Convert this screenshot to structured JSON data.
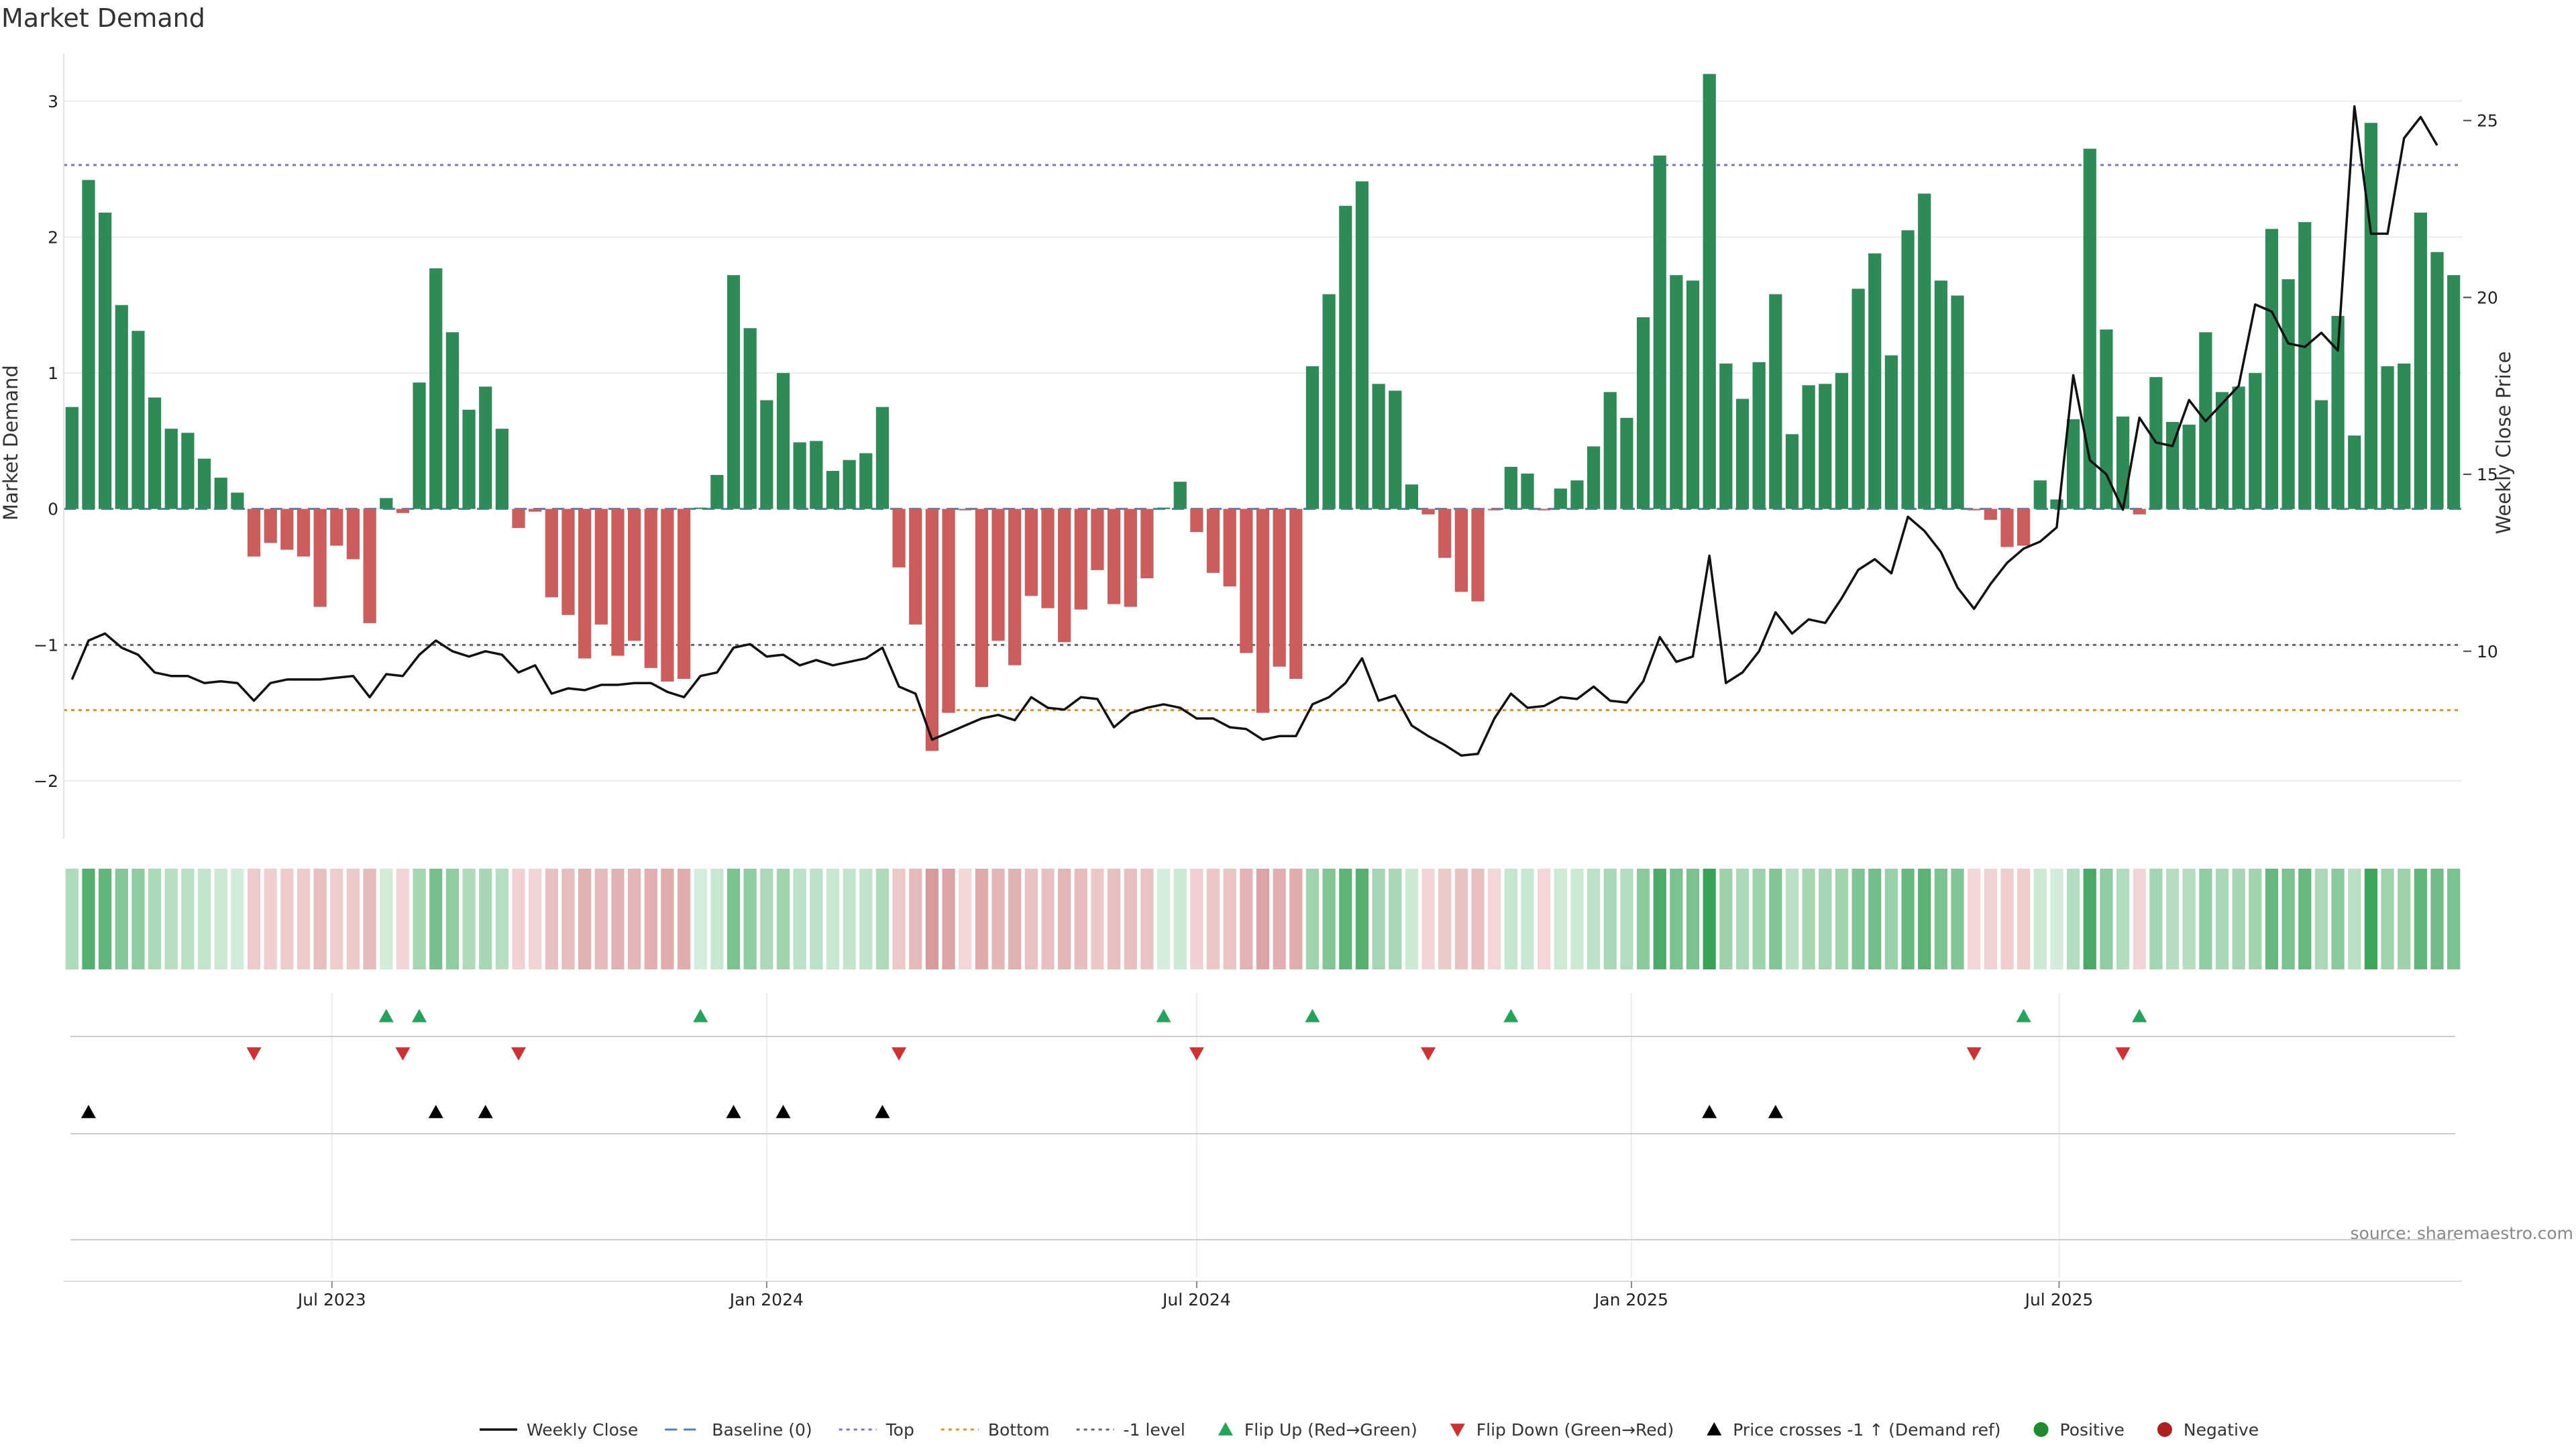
{
  "chart_data": {
    "type": "bar",
    "title": "Market Demand",
    "ylabel_left": "Market Demand",
    "ylabel_right": "Weekly Close Price",
    "source_text": "source: sharemaestro.com",
    "x_start_date": "2023-03-13",
    "y_left_lim": [
      -2.4,
      3.3
    ],
    "y_left_ticks": [
      -2,
      -1,
      0,
      1,
      2,
      3
    ],
    "y_left_tick_labels": [
      "−2",
      "−1",
      "0",
      "1",
      "2",
      "3"
    ],
    "y_right_lim": [
      4.8,
      26.7
    ],
    "y_right_ticks": [
      10,
      15,
      20,
      25
    ],
    "y_right_tick_labels": [
      "10",
      "15",
      "20",
      "25"
    ],
    "x_ticks": [
      {
        "label": "Jul 2023",
        "date": "2023-07-01"
      },
      {
        "label": "Jan 2024",
        "date": "2024-01-01"
      },
      {
        "label": "Jul 2024",
        "date": "2024-07-01"
      },
      {
        "label": "Jan 2025",
        "date": "2025-01-01"
      },
      {
        "label": "Jul 2025",
        "date": "2025-07-01"
      }
    ],
    "reference_lines": [
      {
        "name": "Top",
        "value": 2.53,
        "color": "#7b6fd6",
        "dash": "5,6"
      },
      {
        "name": "-1 level",
        "value": -1.0,
        "color": "#666666",
        "dash": "5,6"
      },
      {
        "name": "Bottom",
        "value": -1.48,
        "color": "#e8901e",
        "dash": "5,6"
      },
      {
        "name": "Baseline (0)",
        "value": 0.0,
        "color": "#4a7fc0",
        "dash": "18,10"
      }
    ],
    "colors": {
      "positive": "#2e8b57",
      "negative": "#cd5c5c",
      "price": "#111111",
      "flip_up": "#22a55b",
      "flip_down": "#d03030",
      "cross": "#000000",
      "positive_dot": "#1e8c2e",
      "negative_dot": "#b02020"
    },
    "demand": [
      0.75,
      2.42,
      2.18,
      1.5,
      1.31,
      0.82,
      0.59,
      0.56,
      0.37,
      0.23,
      0.12,
      -0.35,
      -0.25,
      -0.3,
      -0.35,
      -0.72,
      -0.27,
      -0.37,
      -0.84,
      0.08,
      -0.03,
      0.93,
      1.77,
      1.3,
      0.73,
      0.9,
      0.59,
      -0.14,
      -0.02,
      -0.65,
      -0.78,
      -1.1,
      -0.85,
      -1.08,
      -0.97,
      -1.17,
      -1.27,
      -1.25,
      0.01,
      0.25,
      1.72,
      1.33,
      0.8,
      1.0,
      0.49,
      0.5,
      0.28,
      0.36,
      0.41,
      0.75,
      -0.43,
      -0.85,
      -1.78,
      -1.5,
      -0.01,
      -1.31,
      -0.97,
      -1.15,
      -0.64,
      -0.73,
      -0.98,
      -0.74,
      -0.45,
      -0.7,
      -0.72,
      -0.51,
      0.01,
      0.2,
      -0.17,
      -0.47,
      -0.57,
      -1.06,
      -1.5,
      -1.16,
      -1.25,
      1.05,
      1.58,
      2.23,
      2.41,
      0.92,
      0.87,
      0.18,
      -0.04,
      -0.36,
      -0.61,
      -0.68,
      -0.01,
      0.31,
      0.26,
      -0.01,
      0.15,
      0.21,
      0.46,
      0.86,
      0.67,
      1.41,
      2.6,
      1.72,
      1.68,
      3.2,
      1.07,
      0.81,
      1.08,
      1.58,
      0.55,
      0.91,
      0.92,
      1.0,
      1.62,
      1.88,
      1.13,
      2.05,
      2.32,
      1.68,
      1.57,
      -0.01,
      -0.08,
      -0.28,
      -0.27,
      0.21,
      0.07,
      0.66,
      2.65,
      1.32,
      0.68,
      -0.04,
      0.97,
      0.64,
      0.62,
      1.3,
      0.86,
      0.9,
      1.0,
      2.06,
      1.69,
      2.11,
      0.8,
      1.42,
      0.54,
      2.84,
      1.05,
      1.07,
      2.18,
      1.89,
      1.72
    ],
    "price": [
      9.2,
      10.3,
      10.5,
      10.1,
      9.9,
      9.4,
      9.3,
      9.3,
      9.1,
      9.15,
      9.1,
      8.6,
      9.1,
      9.2,
      9.2,
      9.2,
      9.25,
      9.3,
      8.7,
      9.35,
      9.3,
      9.9,
      10.3,
      10.0,
      9.85,
      10.0,
      9.9,
      9.4,
      9.6,
      8.8,
      8.95,
      8.9,
      9.05,
      9.05,
      9.1,
      9.1,
      8.85,
      8.7,
      9.3,
      9.4,
      10.1,
      10.2,
      9.85,
      9.9,
      9.6,
      9.75,
      9.6,
      9.7,
      9.8,
      10.1,
      9.0,
      8.8,
      7.5,
      7.7,
      7.9,
      8.1,
      8.2,
      8.05,
      8.7,
      8.4,
      8.35,
      8.7,
      8.65,
      7.85,
      8.25,
      8.4,
      8.5,
      8.4,
      8.1,
      8.1,
      7.85,
      7.8,
      7.5,
      7.6,
      7.6,
      8.5,
      8.7,
      9.1,
      9.8,
      8.6,
      8.75,
      7.9,
      7.6,
      7.35,
      7.05,
      7.1,
      8.1,
      8.8,
      8.4,
      8.45,
      8.7,
      8.65,
      9.0,
      8.6,
      8.55,
      9.15,
      10.4,
      9.7,
      9.85,
      12.7,
      9.1,
      9.4,
      10.0,
      11.1,
      10.5,
      10.9,
      10.8,
      11.5,
      12.3,
      12.6,
      12.2,
      13.8,
      13.4,
      12.8,
      11.8,
      11.2,
      11.9,
      12.5,
      12.9,
      13.1,
      13.5,
      17.8,
      15.4,
      15.0,
      14.0,
      16.6,
      15.9,
      15.8,
      17.1,
      16.5,
      17.0,
      17.5,
      19.8,
      19.6,
      18.7,
      18.6,
      19.0,
      18.5,
      25.4,
      21.8,
      21.8,
      24.5,
      25.1,
      24.3
    ],
    "flip_up_idx": [
      19,
      21,
      38,
      66,
      75,
      87,
      118,
      125
    ],
    "flip_down_idx": [
      11,
      20,
      27,
      50,
      68,
      82,
      115,
      124
    ],
    "cross_idx": [
      1,
      22,
      25,
      40,
      43,
      49,
      99,
      103
    ],
    "legend": [
      {
        "label": "Weekly Close",
        "kind": "line"
      },
      {
        "label": "Baseline (0)",
        "kind": "dash-blue"
      },
      {
        "label": "Top",
        "kind": "dot-purple"
      },
      {
        "label": "Bottom",
        "kind": "dot-orange"
      },
      {
        "label": "-1 level",
        "kind": "dot-gray"
      },
      {
        "label": "Flip Up (Red→Green)",
        "kind": "tri-up-green"
      },
      {
        "label": "Flip Down (Green→Red)",
        "kind": "tri-down-red"
      },
      {
        "label": "Price crosses -1 ↑ (Demand ref)",
        "kind": "tri-up-black"
      },
      {
        "label": "Positive",
        "kind": "dot-green"
      },
      {
        "label": "Negative",
        "kind": "dot-red"
      }
    ]
  }
}
